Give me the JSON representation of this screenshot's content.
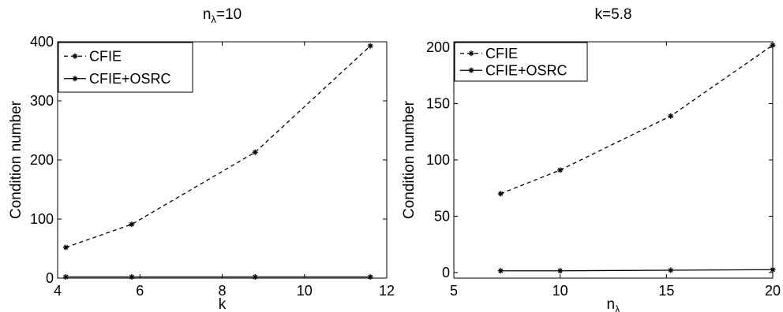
{
  "chart_data": [
    {
      "type": "line",
      "title": "n",
      "title_subscript": "λ",
      "title_suffix": "=10",
      "xlabel": "k",
      "ylabel": "Condition number",
      "xlim": [
        4,
        12
      ],
      "ylim": [
        0,
        400
      ],
      "xticks": [
        "4",
        "6",
        "8",
        "10",
        "12"
      ],
      "yticks": [
        "0",
        "100",
        "200",
        "300",
        "400"
      ],
      "grid": false,
      "legend_position": "top-left",
      "series": [
        {
          "name": "CFIE",
          "style": "dashed",
          "color": "#000000",
          "marker": "asterisk",
          "x": [
            4.2,
            5.8,
            8.8,
            11.6
          ],
          "y": [
            52,
            91,
            213,
            393
          ]
        },
        {
          "name": "CFIE+OSRC",
          "style": "solid",
          "color": "#000000",
          "marker": "asterisk",
          "x": [
            4.2,
            5.8,
            8.8,
            11.6
          ],
          "y": [
            2,
            2,
            2,
            2
          ]
        }
      ]
    },
    {
      "type": "line",
      "title": "k=5.8",
      "xlabel": "n",
      "xlabel_subscript": "λ",
      "ylabel": "Condition number",
      "xlim": [
        5,
        20
      ],
      "ylim": [
        -5,
        205
      ],
      "xticks": [
        "5",
        "10",
        "15",
        "20"
      ],
      "yticks": [
        "0",
        "50",
        "100",
        "150",
        "200"
      ],
      "grid": false,
      "legend_position": "top-left",
      "series": [
        {
          "name": "CFIE",
          "style": "dashed",
          "color": "#000000",
          "marker": "asterisk",
          "x": [
            7.2,
            10,
            15.2,
            20
          ],
          "y": [
            70,
            91,
            139,
            202
          ]
        },
        {
          "name": "CFIE+OSRC",
          "style": "solid",
          "color": "#000000",
          "marker": "asterisk",
          "x": [
            7.2,
            10,
            15.2,
            20
          ],
          "y": [
            1.5,
            1.5,
            2,
            2.5
          ]
        }
      ]
    }
  ]
}
